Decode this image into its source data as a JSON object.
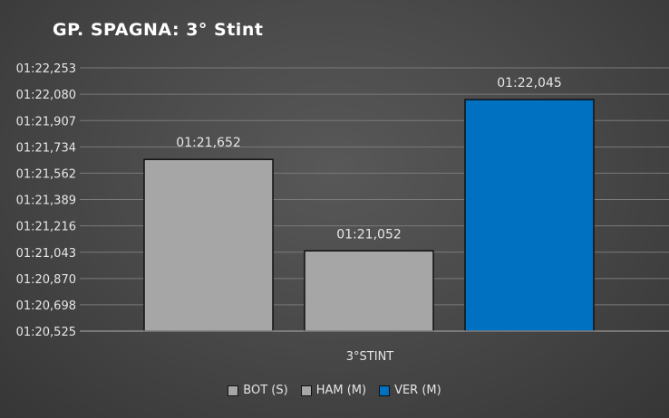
{
  "chart_data": {
    "type": "bar",
    "title": "GP. SPAGNA: 3° Stint",
    "categories": [
      "3°STINT"
    ],
    "series": [
      {
        "name": "BOT (S)",
        "values": [
          81.652
        ],
        "label": "01:21,652",
        "color": "#a6a6a6"
      },
      {
        "name": "HAM (M)",
        "values": [
          81.052
        ],
        "label": "01:21,052",
        "color": "#a6a6a6"
      },
      {
        "name": "VER (M)",
        "values": [
          82.045
        ],
        "label": "01:22,045",
        "color": "#0070c0"
      }
    ],
    "ylim": [
      80.525,
      82.253
    ],
    "y_ticks": [
      {
        "value": 80.525,
        "label": "01:20,525"
      },
      {
        "value": 80.698,
        "label": "01:20,698"
      },
      {
        "value": 80.87,
        "label": "01:20,870"
      },
      {
        "value": 81.043,
        "label": "01:21,043"
      },
      {
        "value": 81.216,
        "label": "01:21,216"
      },
      {
        "value": 81.389,
        "label": "01:21,389"
      },
      {
        "value": 81.562,
        "label": "01:21,562"
      },
      {
        "value": 81.734,
        "label": "01:21,734"
      },
      {
        "value": 81.907,
        "label": "01:21,907"
      },
      {
        "value": 82.08,
        "label": "01:22,080"
      },
      {
        "value": 82.253,
        "label": "01:22,253"
      }
    ],
    "grid": true,
    "legend_position": "bottom"
  }
}
